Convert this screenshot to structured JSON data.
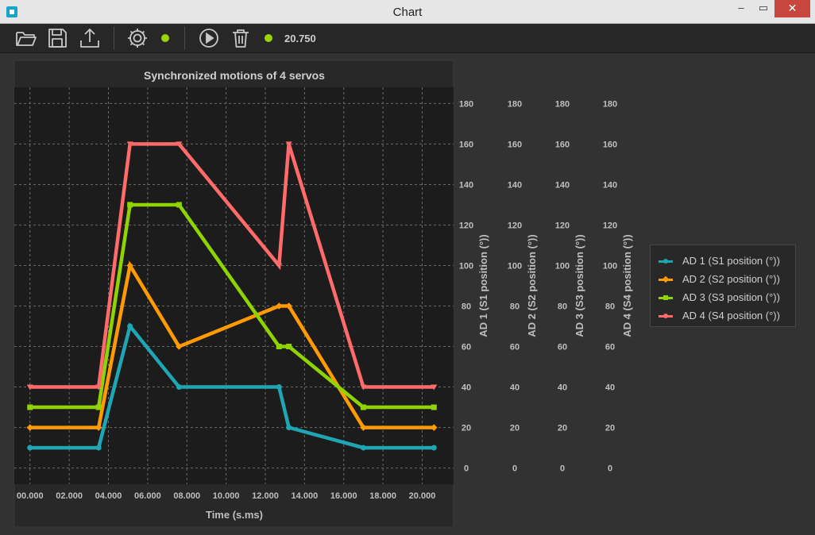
{
  "window": {
    "title": "Chart",
    "min_glyph": "–",
    "max_glyph": "▭",
    "close_glyph": "✕"
  },
  "toolbar": {
    "icons": [
      "open-folder-icon",
      "save-icon",
      "export-icon",
      "gear-icon",
      "play-icon",
      "trash-icon"
    ],
    "status_color": "#9ad400",
    "time_value": "20.750"
  },
  "chart_data": {
    "type": "line",
    "title": "Synchronized motions of 4 servos",
    "xlabel": "Time (s.ms)",
    "xlim": [
      -0.8,
      21.6
    ],
    "x_ticks": [
      0,
      2,
      4,
      6,
      8,
      10,
      12,
      14,
      16,
      18,
      20
    ],
    "x_tick_labels": [
      "00.000",
      "02.000",
      "04.000",
      "06.000",
      "08.000",
      "10.000",
      "12.000",
      "14.000",
      "16.000",
      "18.000",
      "20.000"
    ],
    "ylim": [
      -8,
      188
    ],
    "y_ticks": [
      0,
      20,
      40,
      60,
      80,
      100,
      120,
      140,
      160,
      180
    ],
    "axes": [
      {
        "label": "AD 1 (S1 position (°))"
      },
      {
        "label": "AD 2 (S2 position (°))"
      },
      {
        "label": "AD 3 (S3 position (°))"
      },
      {
        "label": "AD 4 (S4 position (°))"
      }
    ],
    "grid": true,
    "legend_position": "right",
    "series": [
      {
        "name": "AD 1 (S1 position (°))",
        "color": "#1fa6b4",
        "marker": "circle",
        "x": [
          0,
          3.5,
          5.1,
          7.6,
          12.7,
          13.2,
          17.0,
          20.6
        ],
        "y": [
          10,
          10,
          70,
          40,
          40,
          20,
          10,
          10
        ]
      },
      {
        "name": "AD 2 (S2 position (°))",
        "color": "#ff9a00",
        "marker": "diamond",
        "x": [
          0,
          3.5,
          5.1,
          7.6,
          12.7,
          13.2,
          17.0,
          20.6
        ],
        "y": [
          20,
          20,
          100,
          60,
          80,
          80,
          20,
          20
        ]
      },
      {
        "name": "AD 3 (S3 position (°))",
        "color": "#8fd400",
        "marker": "square",
        "x": [
          0,
          3.5,
          5.1,
          7.6,
          12.7,
          13.2,
          17.0,
          20.6
        ],
        "y": [
          30,
          30,
          130,
          130,
          60,
          60,
          30,
          30
        ]
      },
      {
        "name": "AD 4 (S4 position (°))",
        "color": "#ff6a6a",
        "marker": "triangle-down",
        "x": [
          0,
          3.5,
          5.1,
          7.6,
          12.7,
          13.2,
          17.0,
          20.6
        ],
        "y": [
          40,
          40,
          160,
          160,
          100,
          160,
          40,
          40
        ]
      }
    ]
  }
}
